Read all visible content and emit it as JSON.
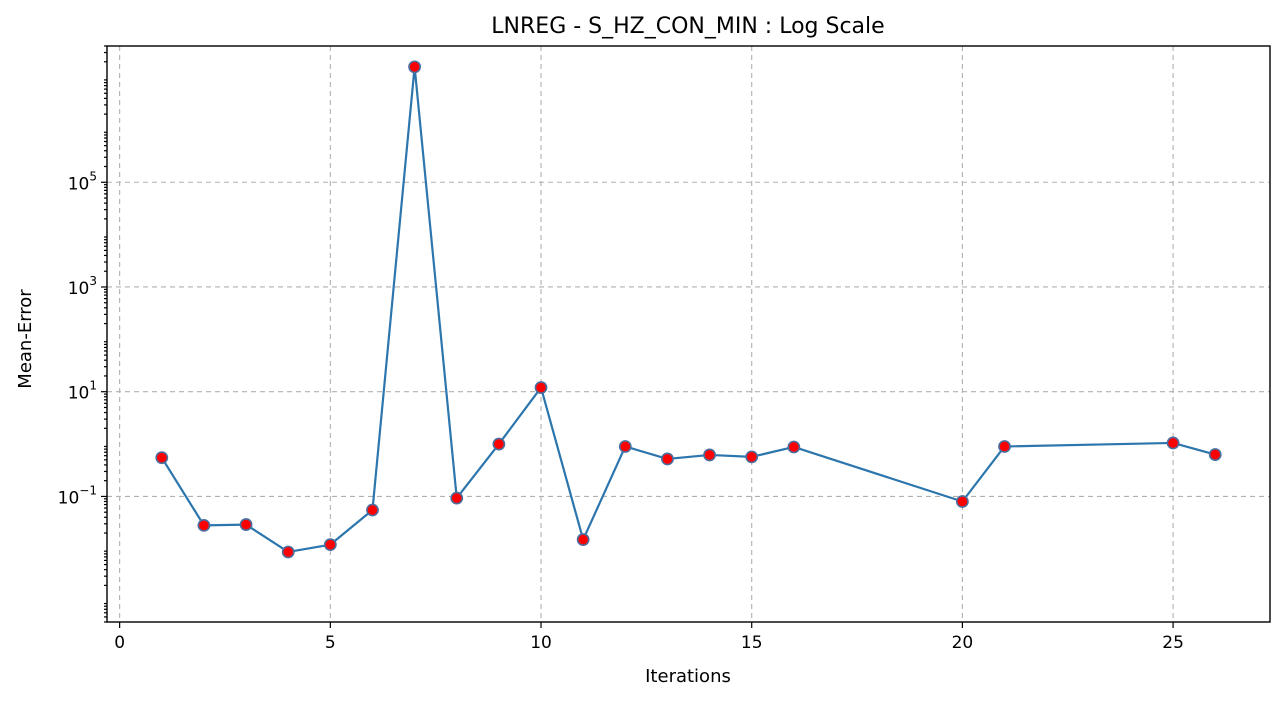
{
  "chart_data": {
    "type": "line",
    "title": "LNREG - S_HZ_CON_MIN : Log Scale",
    "xlabel": "Iterations",
    "ylabel": "Mean-Error",
    "yscale": "log",
    "grid": true,
    "xlim": [
      -0.3,
      27.3
    ],
    "ylim": [
      0.0004,
      40000000
    ],
    "xticks": [
      0,
      5,
      10,
      15,
      20,
      25
    ],
    "yticks": [
      {
        "base": "10",
        "exp": "5",
        "value": 100000
      },
      {
        "base": "10",
        "exp": "3",
        "value": 1000
      },
      {
        "base": "10",
        "exp": "1",
        "value": 10
      },
      {
        "base": "10",
        "exp": "−1",
        "value": 0.1
      }
    ],
    "colors": {
      "line": "#2c76ad",
      "marker_fill": "#ff0000",
      "marker_edge": "#4c6e9e"
    },
    "x": [
      1,
      2,
      3,
      4,
      5,
      6,
      7,
      8,
      9,
      10,
      11,
      12,
      13,
      14,
      15,
      16,
      20,
      21,
      25,
      26
    ],
    "y": [
      0.55,
      0.028,
      0.029,
      0.0087,
      0.012,
      0.055,
      16000000,
      0.093,
      1.0,
      12,
      0.015,
      0.9,
      0.52,
      0.62,
      0.57,
      0.88,
      0.08,
      0.9,
      1.05,
      0.63
    ]
  }
}
